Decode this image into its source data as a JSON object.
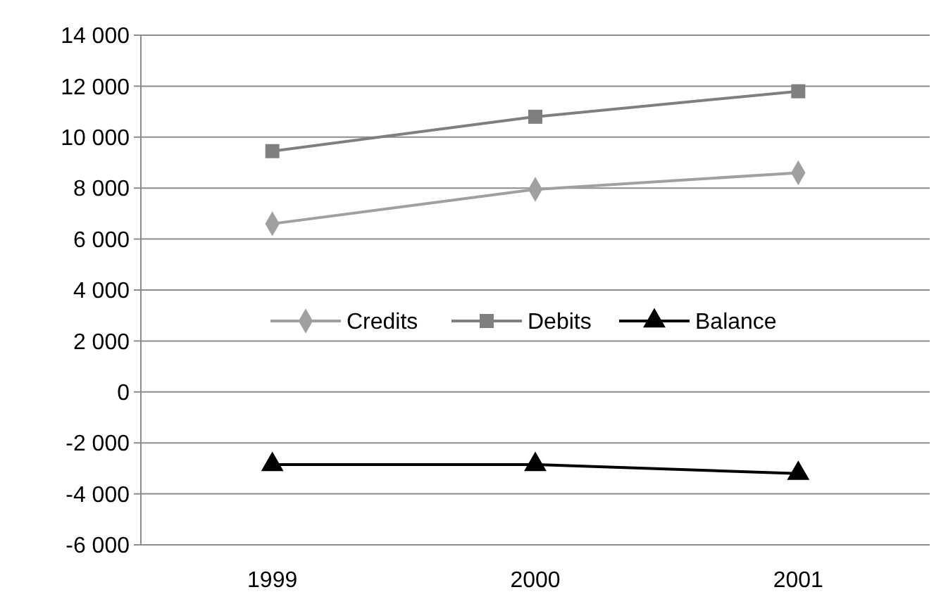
{
  "chart_data": {
    "type": "line",
    "categories": [
      "1999",
      "2000",
      "2001"
    ],
    "series": [
      {
        "name": "Credits",
        "color": "#a0a0a0",
        "marker": "diamond",
        "values": [
          6600,
          7950,
          8600
        ]
      },
      {
        "name": "Debits",
        "color": "#7f7f7f",
        "marker": "square",
        "values": [
          9450,
          10800,
          11800
        ]
      },
      {
        "name": "Balance",
        "color": "#000000",
        "marker": "triangle",
        "values": [
          -2850,
          -2850,
          -3200
        ]
      }
    ],
    "ylim": [
      -6000,
      14000
    ],
    "yticks": [
      {
        "value": -6000,
        "label": "-6 000"
      },
      {
        "value": -4000,
        "label": "-4 000"
      },
      {
        "value": -2000,
        "label": "-2 000"
      },
      0,
      {
        "value": 2000,
        "label": "2 000"
      },
      {
        "value": 4000,
        "label": "4 000"
      },
      {
        "value": 6000,
        "label": "6 000"
      },
      {
        "value": 8000,
        "label": "8 000"
      },
      {
        "value": 10000,
        "label": "10 000"
      },
      {
        "value": 12000,
        "label": "12 000"
      },
      {
        "value": 14000,
        "label": "14 000"
      }
    ],
    "grid": "y",
    "legend": "center",
    "line_style": "solid"
  }
}
